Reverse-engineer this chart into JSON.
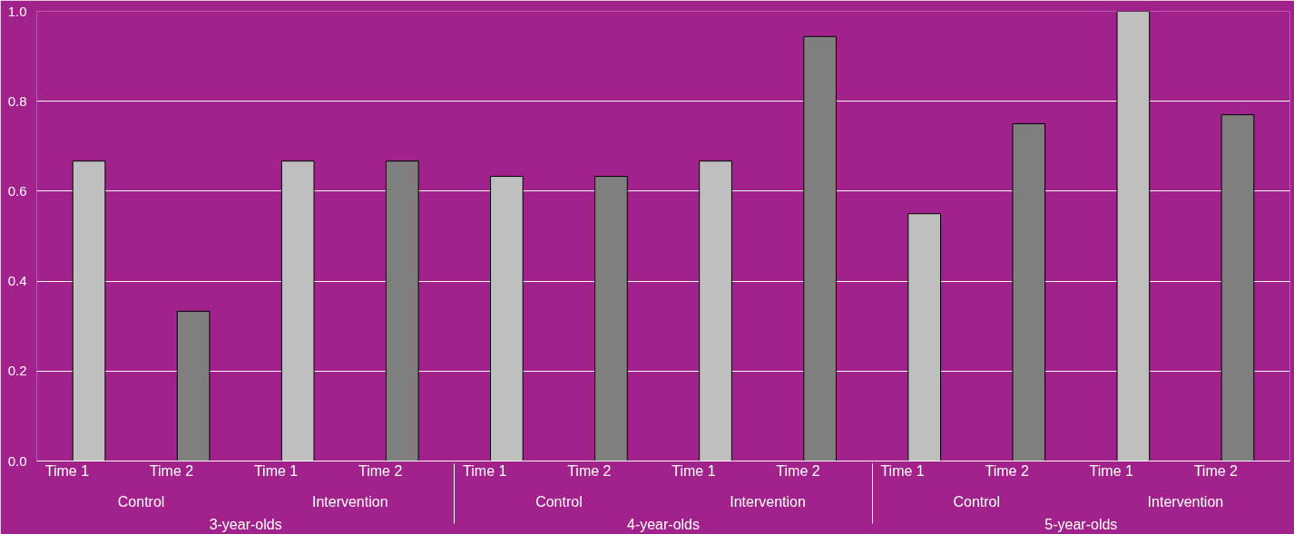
{
  "chart_data": {
    "type": "bar",
    "categories": [
      "Time 1",
      "Time 2",
      "Time 1",
      "Time 2",
      "Time 1",
      "Time 2",
      "Time 1",
      "Time 2",
      "Time 1",
      "Time 2",
      "Time 1",
      "Time 2"
    ],
    "annotations": [
      "Control",
      "Intervention",
      "Control",
      "Intervention",
      "Control",
      "Intervention",
      "3-year-olds",
      "4-year-olds",
      "5-year-olds"
    ],
    "values": [
      0.667,
      0.333,
      0.667,
      0.667,
      0.633,
      0.633,
      0.667,
      0.944,
      0.55,
      0.75,
      1.0,
      0.77
    ],
    "colors": [
      "#bfbfbf",
      "#7f7f7f",
      "#bfbfbf",
      "#7f7f7f",
      "#bfbfbf",
      "#7f7f7f",
      "#bfbfbf",
      "#7f7f7f",
      "#bfbfbf",
      "#7f7f7f",
      "#bfbfbf",
      "#7f7f7f"
    ],
    "ylim": [
      0,
      1.0
    ],
    "yticks": [
      {
        "value": 0,
        "label": "0.0"
      },
      {
        "value": 0.2,
        "label": "0.2"
      },
      {
        "value": 0.4,
        "label": "0.4"
      },
      {
        "value": 0.6,
        "label": "0.6"
      },
      {
        "value": 0.8,
        "label": "0.8"
      },
      {
        "value": 1.0,
        "label": "1.0"
      }
    ],
    "grid": "y"
  }
}
